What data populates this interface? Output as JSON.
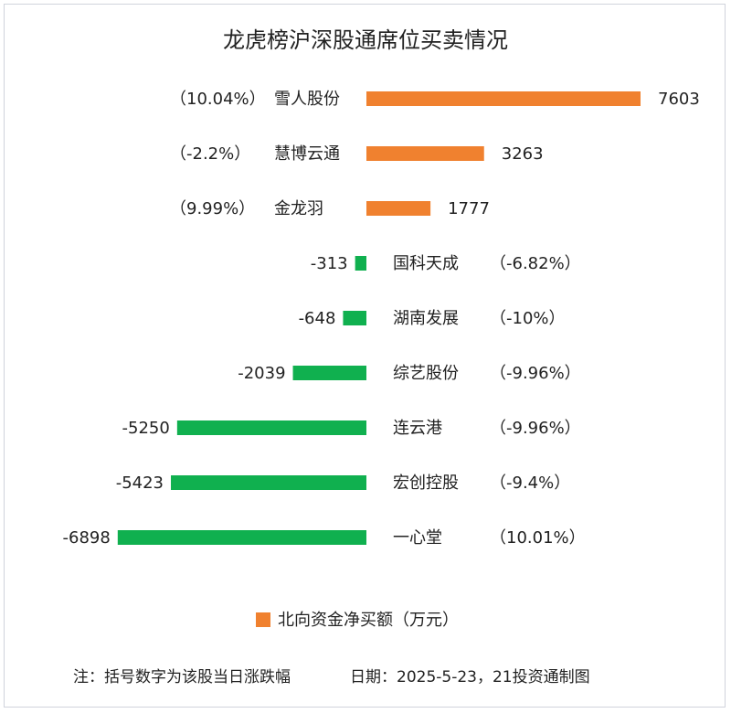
{
  "chart_data": {
    "type": "bar",
    "title": "龙虎榜沪深股通席位买卖情况",
    "xlabel": "",
    "ylabel": "",
    "series": [
      {
        "name": "北向资金净买额（万元）",
        "color": "#f0812f",
        "negative_color": "#10b04f"
      }
    ],
    "items": [
      {
        "name": "雪人股份",
        "value": 7603,
        "change": "（10.04%）"
      },
      {
        "name": "慧博云通",
        "value": 3263,
        "change": "（-2.2%）"
      },
      {
        "name": "金龙羽",
        "value": 1777,
        "change": "（9.99%）"
      },
      {
        "name": "国科天成",
        "value": -313,
        "change": "（-6.82%）"
      },
      {
        "name": "湖南发展",
        "value": -648,
        "change": "（-10%）"
      },
      {
        "name": "综艺股份",
        "value": -2039,
        "change": "（-9.96%）"
      },
      {
        "name": "连云港",
        "value": -5250,
        "change": "（-9.96%）"
      },
      {
        "name": "宏创控股",
        "value": -5423,
        "change": "（-9.4%）"
      },
      {
        "name": "一心堂",
        "value": -6898,
        "change": "（10.01%）"
      }
    ],
    "legend": {
      "label": "北向资金净买额（万元）",
      "placement": "bottom"
    },
    "grid": false
  },
  "footnote": {
    "note": "注：括号数字为该股当日涨跌幅",
    "source": "日期：2025-5-23，21投资通制图"
  }
}
